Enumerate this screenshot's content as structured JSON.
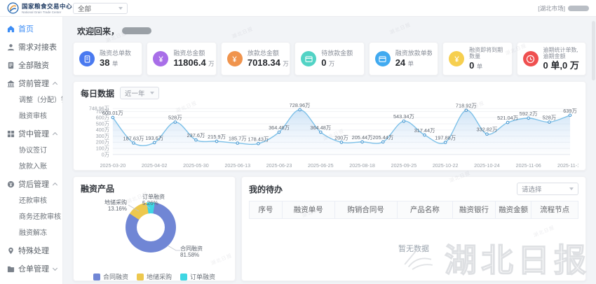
{
  "header": {
    "brand": {
      "title": "国家粮食交易中心",
      "subtitle": "National Grain Trade Center"
    },
    "market_select": "全部",
    "user_market": "[湖北市场]"
  },
  "sidebar": {
    "items": [
      {
        "id": "home",
        "label": "首页",
        "icon": "home-icon",
        "active": true
      },
      {
        "id": "demand-docking",
        "label": "需求对接表",
        "icon": "user-icon"
      },
      {
        "id": "all-financing",
        "label": "全部融资",
        "icon": "document-icon"
      },
      {
        "id": "pre-loan",
        "label": "贷前管理",
        "icon": "bank-icon",
        "expanded": true,
        "children": [
          "调整（分配）银行",
          "融资审核"
        ]
      },
      {
        "id": "mid-loan",
        "label": "贷中管理",
        "icon": "grid-icon",
        "expanded": true,
        "children": [
          "协议签订",
          "放款入账"
        ]
      },
      {
        "id": "post-loan",
        "label": "贷后管理",
        "icon": "coin-icon",
        "expanded": true,
        "children": [
          "还款审核",
          "商务还款审核",
          "融资解冻"
        ]
      },
      {
        "id": "special",
        "label": "特殊处理",
        "icon": "pin-icon"
      },
      {
        "id": "warehouse-receipt",
        "label": "仓单管理",
        "icon": "folder-icon",
        "expanded": false,
        "children": []
      }
    ]
  },
  "main": {
    "welcome": "欢迎回来，",
    "stats": [
      {
        "label": "融资总单数",
        "value": "38",
        "unit": "单",
        "color": "#4a7af0",
        "glyph": "doc",
        "icon_name": "document-icon"
      },
      {
        "label": "融资总金额",
        "value": "11806.4",
        "unit": "万",
        "color": "#a86ee8",
        "glyph": "yen",
        "icon_name": "money-icon"
      },
      {
        "label": "放款总金额",
        "value": "7018.34",
        "unit": "万",
        "color": "#f0944d",
        "glyph": "yen",
        "icon_name": "coin-icon"
      },
      {
        "label": "待放款金额",
        "value": "0",
        "unit": "万",
        "color": "#52d3c5",
        "glyph": "card",
        "icon_name": "card-icon"
      },
      {
        "label": "融资放款单数",
        "value": "24",
        "unit": "单",
        "color": "#41aaf0",
        "glyph": "card",
        "icon_name": "card-icon"
      },
      {
        "label": "融资即将到期数量",
        "value": "0",
        "unit": "单",
        "color": "#f6cf4f",
        "glyph": "yen",
        "icon_name": "coin-icon"
      },
      {
        "label": "逾期统计单数,逾期金额",
        "value": "0 单,0 万",
        "unit": "",
        "color": "#ef5050",
        "glyph": "clock",
        "icon_name": "clock-icon"
      }
    ]
  },
  "chart_data": [
    {
      "type": "line",
      "title": "每日数据",
      "range_select": "近一年",
      "unit": "万",
      "values": [
        603.01,
        187.63,
        193.6,
        528,
        237.6,
        215.9,
        185.7,
        178.43,
        364.48,
        728.96,
        364.48,
        200,
        205.44,
        205.44,
        543.34,
        317.44,
        197.88,
        718.92,
        332.82,
        521.04,
        592.2,
        528,
        639
      ],
      "x_tick_dates": [
        "2025-03-20",
        "2025-04-02",
        "2025-05-30",
        "2025-06-13",
        "2025-06-23",
        "2025-06-25",
        "2025-08-18",
        "2025-09-25",
        "2025-10-22",
        "2025-10-24",
        "2025-11-06",
        "2025-11-18"
      ],
      "y_ticks": [
        0,
        100,
        200,
        300,
        400,
        500,
        600,
        700
      ],
      "y_max": 748.96,
      "ylim": [
        0,
        748.96
      ],
      "grid": true,
      "line_color": "#7cc0e8",
      "area_color": "#9ec9ee"
    },
    {
      "type": "pie",
      "title": "融资产品",
      "slices": [
        {
          "name": "订单融资",
          "pct": 5.26,
          "pct_label": "5.26%",
          "color": "#3fd6e3"
        },
        {
          "name": "合同融资",
          "pct": 81.58,
          "pct_label": "81.58%",
          "color": "#7086d5"
        },
        {
          "name": "地储采购",
          "pct": 13.16,
          "pct_label": "13.16%",
          "color": "#edc84e"
        }
      ],
      "legend": [
        {
          "name": "合同融资",
          "color": "#7086d5"
        },
        {
          "name": "地储采购",
          "color": "#edc84e"
        },
        {
          "name": "订单融资",
          "color": "#3fd6e3"
        }
      ],
      "legend_position": "bottom"
    }
  ],
  "todo": {
    "title": "我的待办",
    "filter_placeholder": "请选择",
    "columns": [
      "序号",
      "融资单号",
      "购销合同号",
      "产品名称",
      "融资银行",
      "融资金额",
      "流程节点"
    ],
    "empty": "暂无数据"
  },
  "watermark": {
    "text": "湖北日报"
  }
}
